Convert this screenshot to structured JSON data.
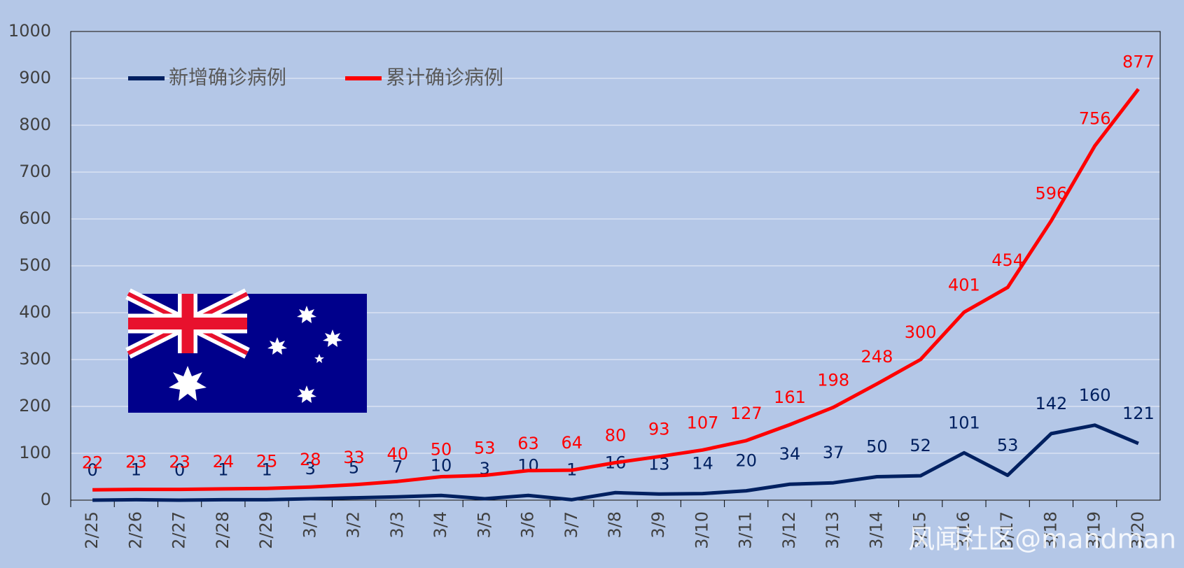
{
  "chart_data": {
    "type": "line",
    "categories": [
      "2/25",
      "2/26",
      "2/27",
      "2/28",
      "2/29",
      "3/1",
      "3/2",
      "3/3",
      "3/4",
      "3/5",
      "3/6",
      "3/7",
      "3/8",
      "3/9",
      "3/10",
      "3/11",
      "3/12",
      "3/13",
      "3/14",
      "3/15",
      "3/16",
      "3/17",
      "3/18",
      "3/19",
      "3/20"
    ],
    "series": [
      {
        "name": "新增确诊病例",
        "color": "#002060",
        "values": [
          0,
          1,
          0,
          1,
          1,
          3,
          5,
          7,
          10,
          3,
          10,
          1,
          16,
          13,
          14,
          20,
          34,
          37,
          50,
          52,
          101,
          53,
          142,
          160,
          121
        ]
      },
      {
        "name": "累计确诊病例",
        "color": "#ff0000",
        "values": [
          22,
          23,
          23,
          24,
          25,
          28,
          33,
          40,
          50,
          53,
          63,
          64,
          80,
          93,
          107,
          127,
          161,
          198,
          248,
          300,
          401,
          454,
          596,
          756,
          877
        ]
      }
    ],
    "ylim": [
      0,
      1000
    ],
    "yticks": [
      0,
      100,
      200,
      300,
      400,
      500,
      600,
      700,
      800,
      900,
      1000
    ],
    "grid": true,
    "legend": "top-left",
    "watermark": "风闻社区@mandman"
  }
}
